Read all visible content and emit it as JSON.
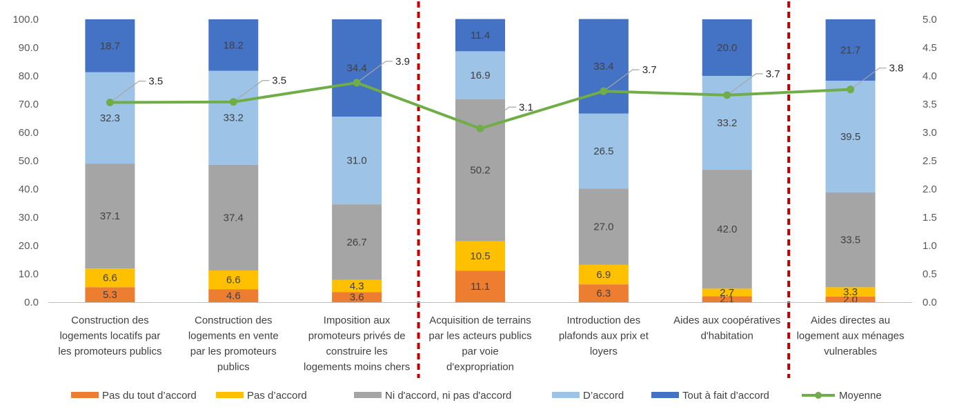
{
  "chart_data": {
    "type": "bar",
    "stacked": true,
    "categories": [
      [
        "Construction des",
        "logements locatifs par",
        "les promoteurs publics"
      ],
      [
        "Construction des",
        "logements en vente",
        "par les promoteurs",
        "publics"
      ],
      [
        "Imposition aux",
        "promoteurs privés de",
        "construire les",
        "logements moins chers"
      ],
      [
        "Acquisition de terrains",
        "par les acteurs publics",
        "par voie",
        "d'expropriation"
      ],
      [
        "Introduction des",
        "plafonds aux prix et",
        "loyers"
      ],
      [
        "Aides aux coopératives",
        "d'habitation"
      ],
      [
        "Aides directes au",
        "logement aux ménages",
        "vulnerables"
      ]
    ],
    "series": [
      {
        "name": "Pas du tout d’accord",
        "color": "#ED7D31",
        "values": [
          5.3,
          4.6,
          3.6,
          11.1,
          6.3,
          2.1,
          2.0
        ],
        "labels": [
          "5.3",
          "4.6",
          "3.6",
          "11.1",
          "6.3",
          "2.1",
          "2.0"
        ]
      },
      {
        "name": "Pas d’accord",
        "color": "#FFC000",
        "values": [
          6.6,
          6.6,
          4.3,
          10.5,
          6.9,
          2.7,
          3.3
        ],
        "labels": [
          "6.6",
          "6.6",
          "4.3",
          "10.5",
          "6.9",
          "2.7",
          "3.3"
        ]
      },
      {
        "name": "Ni d'accord, ni pas d'accord",
        "color": "#A5A5A5",
        "values": [
          37.1,
          37.4,
          26.7,
          50.2,
          27.0,
          42.0,
          33.5
        ],
        "labels": [
          "37.1",
          "37.4",
          "26.7",
          "50.2",
          "27.0",
          "42.0",
          "33.5"
        ]
      },
      {
        "name": "D’accord",
        "color": "#9DC3E6",
        "values": [
          32.3,
          33.2,
          31.0,
          16.9,
          26.5,
          33.2,
          39.5
        ],
        "labels": [
          "32.3",
          "33.2",
          "31.0",
          "16.9",
          "26.5",
          "33.2",
          "39.5"
        ]
      },
      {
        "name": "Tout à fait d’accord",
        "color": "#4472C4",
        "values": [
          18.7,
          18.2,
          34.4,
          11.4,
          33.4,
          20.0,
          21.7
        ],
        "labels": [
          "18.7",
          "18.2",
          "34.4",
          "11.4",
          "33.4",
          "20.0",
          "21.7"
        ]
      }
    ],
    "line_series": {
      "name": "Moyenne",
      "color": "#70AD47",
      "values": [
        3.53,
        3.54,
        3.88,
        3.07,
        3.73,
        3.66,
        3.76
      ],
      "labels": [
        "3.5",
        "3.5",
        "3.9",
        "3.1",
        "3.7",
        "3.7",
        "3.8"
      ]
    },
    "y_left": {
      "min": 0,
      "max": 100,
      "ticks": [
        "0.0",
        "10.0",
        "20.0",
        "30.0",
        "40.0",
        "50.0",
        "60.0",
        "70.0",
        "80.0",
        "90.0",
        "100.0"
      ]
    },
    "y_right": {
      "min": 0,
      "max": 5,
      "ticks": [
        "0.0",
        "0.5",
        "1.0",
        "1.5",
        "2.0",
        "2.5",
        "3.0",
        "3.5",
        "4.0",
        "4.5",
        "5.0"
      ]
    },
    "dividers_after_category": [
      2,
      5
    ],
    "divider_color": "#C00000",
    "legend_position": "bottom",
    "grid": false
  }
}
